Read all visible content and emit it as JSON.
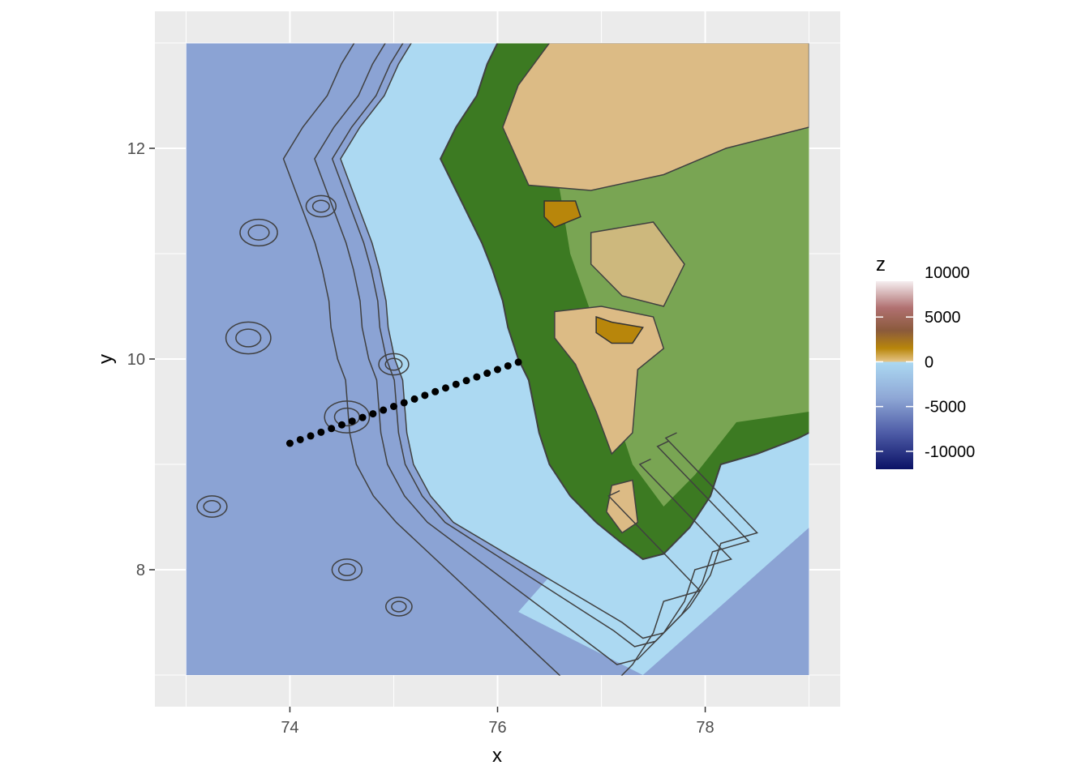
{
  "chart_data": {
    "type": "heatmap",
    "title": "",
    "xlabel": "x",
    "ylabel": "y",
    "xlim": [
      72.7,
      79.3
    ],
    "ylim": [
      6.7,
      13.3
    ],
    "raster_extent": {
      "x": [
        73.0,
        79.0
      ],
      "y": [
        7.0,
        13.0
      ]
    },
    "x_ticks": [
      74,
      76,
      78
    ],
    "x_tick_labels": [
      "74",
      "76",
      "78"
    ],
    "y_ticks": [
      8,
      10,
      12
    ],
    "y_tick_labels": [
      "8",
      "10",
      "12"
    ],
    "grid": true,
    "contours": true,
    "legend": {
      "title": "z",
      "position": "right",
      "breaks": [
        10000,
        5000,
        0,
        -5000,
        -10000
      ],
      "labels": [
        "10000",
        "5000",
        "0",
        "-5000",
        "-10000"
      ],
      "range": [
        -12000,
        9000
      ],
      "gradient": [
        {
          "value": 9000,
          "color": "#f5eef0"
        },
        {
          "value": 6000,
          "color": "#b07070"
        },
        {
          "value": 3500,
          "color": "#8b5a3c"
        },
        {
          "value": 1500,
          "color": "#b8860b"
        },
        {
          "value": 0,
          "color": "#e6c589"
        },
        {
          "value": -1,
          "color": "#acd9f2"
        },
        {
          "value": -4000,
          "color": "#8fa8d6"
        },
        {
          "value": -8000,
          "color": "#4d5ba6"
        },
        {
          "value": -12000,
          "color": "#0b1266"
        }
      ]
    },
    "colors": {
      "deep_ocean": "#8ba3d4",
      "shelf": "#acd9f2",
      "lowland": "#3c7a22",
      "midland": "#88b060",
      "plateau": "#dcbb85",
      "highland": "#b8860b",
      "contour": "#404040"
    },
    "coastline": [
      [
        76.0,
        13.0
      ],
      [
        75.9,
        12.8
      ],
      [
        75.8,
        12.5
      ],
      [
        75.6,
        12.2
      ],
      [
        75.45,
        11.9
      ],
      [
        75.6,
        11.6
      ],
      [
        75.75,
        11.3
      ],
      [
        75.85,
        11.1
      ],
      [
        75.95,
        10.85
      ],
      [
        76.05,
        10.55
      ],
      [
        76.1,
        10.3
      ],
      [
        76.2,
        10.0
      ],
      [
        76.3,
        9.8
      ],
      [
        76.35,
        9.55
      ],
      [
        76.4,
        9.3
      ],
      [
        76.5,
        9.0
      ],
      [
        76.7,
        8.7
      ],
      [
        76.95,
        8.45
      ],
      [
        77.2,
        8.25
      ],
      [
        77.4,
        8.1
      ],
      [
        77.6,
        8.15
      ],
      [
        77.85,
        8.4
      ],
      [
        78.05,
        8.7
      ],
      [
        78.15,
        9.0
      ],
      [
        78.5,
        9.1
      ],
      [
        78.9,
        9.25
      ],
      [
        79.0,
        9.3
      ]
    ],
    "series": [
      {
        "type": "points",
        "x": [
          74.0,
          74.1,
          74.2,
          74.3,
          74.4,
          74.5,
          74.6,
          74.7,
          74.8,
          74.9,
          75.0,
          75.1,
          75.2,
          75.3,
          75.4,
          75.5,
          75.6,
          75.7,
          75.8,
          75.9,
          76.0,
          76.1,
          76.2
        ],
        "y": [
          9.2,
          9.235,
          9.27,
          9.305,
          9.34,
          9.375,
          9.41,
          9.445,
          9.48,
          9.515,
          9.55,
          9.585,
          9.62,
          9.655,
          9.69,
          9.725,
          9.76,
          9.795,
          9.83,
          9.865,
          9.9,
          9.935,
          9.97
        ],
        "color": "#000000"
      }
    ]
  }
}
